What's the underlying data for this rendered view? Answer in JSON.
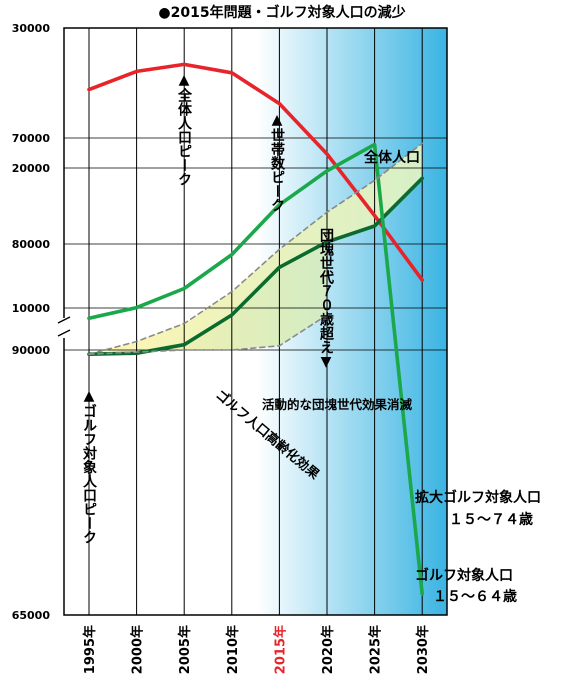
{
  "chart_data": {
    "title": "●2015年問題・ゴルフ対象人口の減少",
    "type": "line",
    "x": [
      1995,
      2000,
      2005,
      2010,
      2015,
      2020,
      2025,
      2030
    ],
    "x_tick_labels": [
      "1995年",
      "2000年",
      "2005年",
      "2010年",
      "2015年",
      "2020年",
      "2025年",
      "2030年"
    ],
    "highlight_tick": "2015年",
    "panels": [
      {
        "name": "upper",
        "y_ticks": [
          10000,
          20000,
          30000
        ],
        "ylim": [
          10000,
          30000
        ],
        "series": [
          {
            "name": "全体人口",
            "color": "#e8242b",
            "values": [
              25600,
              26900,
              27400,
              26800,
              24600,
              21000,
              16600,
              12000
            ]
          }
        ]
      },
      {
        "name": "lower",
        "y_ticks": [
          65000,
          70000,
          80000,
          90000
        ],
        "y_scale_breaks": [
          [
            65000,
            70000,
            0.65
          ],
          [
            70000,
            90000,
            1.0
          ]
        ],
        "ylim": [
          65000,
          90000
        ],
        "series": [
          {
            "name": "拡大ゴルフ対象人口",
            "color": "#0b6b2f",
            "values": [
              90400,
              90300,
              89500,
              86700,
              82200,
              79800,
              78300,
              73800
            ]
          },
          {
            "name": "ゴルフ対象人口",
            "color": "#1aa84a",
            "values": [
              87000,
              86000,
              84200,
              81000,
              76300,
              73100,
              70600,
              67000
            ]
          },
          {
            "name": "dashed-upper",
            "color": "#8a8a8a",
            "dashed": true,
            "values": [
              90400,
              90200,
              90000,
              90000,
              89600,
              86700,
              null,
              null
            ]
          },
          {
            "name": "dashed-lower",
            "color": "#8a8a8a",
            "dashed": true,
            "values": [
              90400,
              89200,
              87500,
              84500,
              80500,
              77000,
              74000,
              70500
            ]
          }
        ]
      }
    ],
    "annotations": {
      "total_peak": "▲全体人口ピーク",
      "household_peak": "▲世帯数ピーク",
      "dankai_70": "団塊世代７０歳超え▼",
      "total_label": "全体人口",
      "golf_peak": "▲ゴルフ対象人口ピーク",
      "active_effect": "活動的な団塊世代効果消滅",
      "aging_effect": "ゴルフ人口高齢化効果",
      "expanded_label": "拡大ゴルフ対象人口",
      "expanded_range": "１５～７４歳",
      "golf_label": "ゴルフ対象人口",
      "golf_range": "１５～６４歳"
    }
  }
}
